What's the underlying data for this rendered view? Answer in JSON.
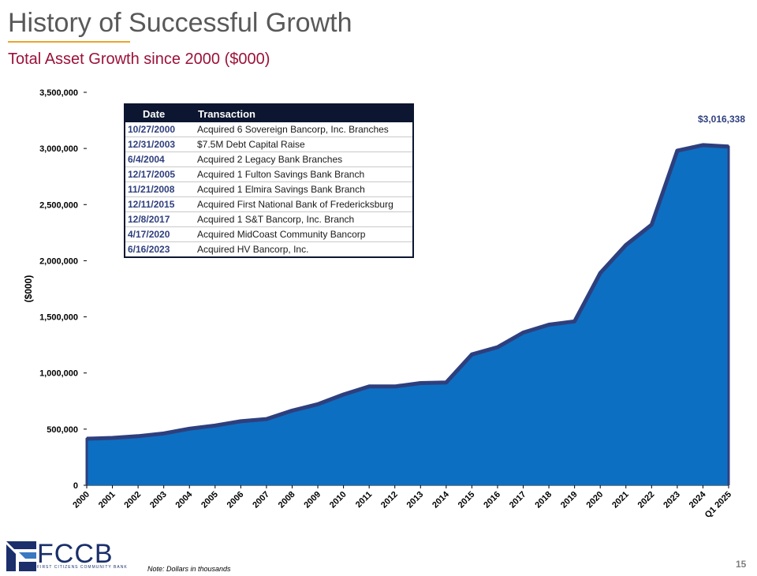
{
  "slide": {
    "title": "History of Successful Growth",
    "subtitle": "Total Asset Growth since 2000 ($000)",
    "note": "Note: Dollars in thousands",
    "page_number": "15",
    "logo_text": "FCCB",
    "logo_subtext": "FIRST CITIZENS COMMUNITY BANK"
  },
  "table": {
    "headers": [
      "Date",
      "Transaction"
    ],
    "rows": [
      {
        "date": "10/27/2000",
        "transaction": "Acquired 6 Sovereign Bancorp, Inc. Branches"
      },
      {
        "date": "12/31/2003",
        "transaction": "$7.5M Debt Capital Raise"
      },
      {
        "date": "6/4/2004",
        "transaction": "Acquired 2 Legacy Bank Branches"
      },
      {
        "date": "12/17/2005",
        "transaction": "Acquired 1 Fulton Savings Bank Branch"
      },
      {
        "date": "11/21/2008",
        "transaction": "Acquired 1 Elmira Savings Bank Branch"
      },
      {
        "date": "12/11/2015",
        "transaction": "Acquired First National Bank of Fredericksburg"
      },
      {
        "date": "12/8/2017",
        "transaction": "Acquired 1 S&T Bancorp, Inc. Branch"
      },
      {
        "date": "4/17/2020",
        "transaction": "Acquired MidCoast Community Bancorp"
      },
      {
        "date": "6/16/2023",
        "transaction": "Acquired HV Bancorp, Inc."
      }
    ]
  },
  "chart_data": {
    "type": "area",
    "title": "Total Asset Growth since 2000 ($000)",
    "xlabel": "",
    "ylabel": "($000)",
    "categories": [
      "2000",
      "2001",
      "2002",
      "2003",
      "2004",
      "2005",
      "2006",
      "2007",
      "2008",
      "2009",
      "2010",
      "2011",
      "2012",
      "2013",
      "2014",
      "2015",
      "2016",
      "2017",
      "2018",
      "2019",
      "2020",
      "2021",
      "2022",
      "2023",
      "2024",
      "Q1 2025"
    ],
    "values": [
      415000,
      422000,
      437000,
      462000,
      504000,
      532000,
      570000,
      590000,
      665000,
      722000,
      808000,
      880000,
      880000,
      910000,
      915000,
      1165000,
      1230000,
      1360000,
      1430000,
      1460000,
      1890000,
      2140000,
      2320000,
      2980000,
      3030000,
      3016338
    ],
    "ylim": [
      0,
      3500000
    ],
    "yticks": [
      0,
      500000,
      1000000,
      1500000,
      2000000,
      2500000,
      3000000,
      3500000
    ],
    "ytick_labels": [
      "0",
      "500,000",
      "1,000,000",
      "1,500,000",
      "2,000,000",
      "2,500,000",
      "3,000,000",
      "3,500,000"
    ],
    "annotation": {
      "text": "$3,016,338",
      "category": "Q1 2025"
    },
    "fill_color": "#0d6fc1",
    "line_color": "#2e3f7e",
    "grid": false
  }
}
